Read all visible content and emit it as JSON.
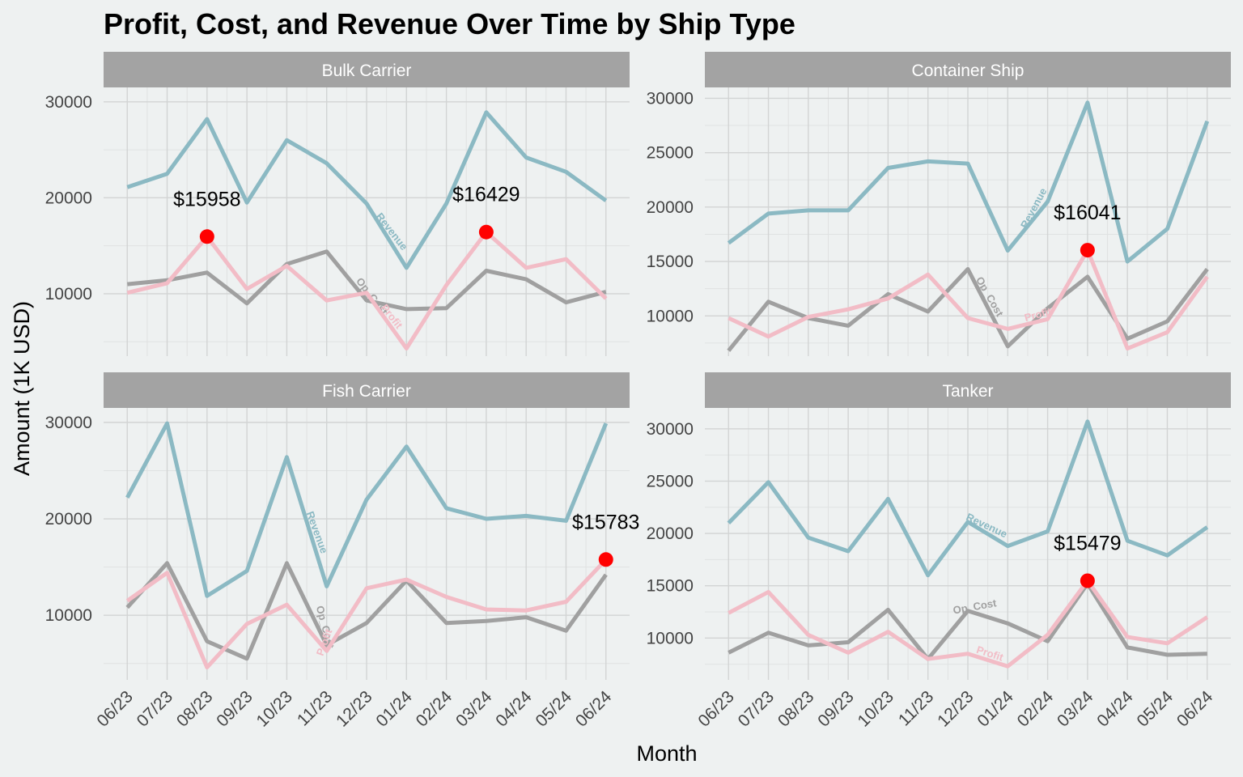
{
  "chart_data": {
    "type": "line",
    "title": "Profit, Cost, and Revenue Over Time by Ship Type",
    "xlabel": "Month",
    "ylabel": "Amount (1K USD)",
    "categories": [
      "06/23",
      "07/23",
      "08/23",
      "09/23",
      "10/23",
      "11/23",
      "12/23",
      "01/24",
      "02/24",
      "03/24",
      "04/24",
      "05/24",
      "06/24"
    ],
    "series_colors": {
      "Revenue": "#8bb9c3",
      "Op_Cost": "#a0a0a0",
      "Profit": "#f2bcc6"
    },
    "highlight_color": "#ff0000",
    "panels": [
      {
        "name": "Bulk Carrier",
        "ylim": [
          3500,
          31500
        ],
        "yticks": [
          10000,
          20000,
          30000
        ],
        "series": [
          {
            "name": "Revenue",
            "values": [
              21100,
              22500,
              28200,
              19500,
              26000,
              23600,
              19400,
              12700,
              19400,
              28900,
              24200,
              22700,
              19700
            ]
          },
          {
            "name": "Op_Cost",
            "values": [
              11000,
              11400,
              12200,
              9000,
              13100,
              14400,
              9300,
              8400,
              8500,
              12400,
              11500,
              9100,
              10200
            ]
          },
          {
            "name": "Profit",
            "values": [
              10100,
              11100,
              15958,
              10500,
              12900,
              9300,
              10100,
              4300,
              10900,
              16429,
              12700,
              13600,
              9500
            ]
          }
        ],
        "highlights": [
          {
            "x": "08/23",
            "y": 15958,
            "label": "$15958"
          },
          {
            "x": "03/24",
            "y": 16429,
            "label": "$16429"
          }
        ]
      },
      {
        "name": "Container Ship",
        "ylim": [
          6300,
          31000
        ],
        "yticks": [
          10000,
          15000,
          20000,
          25000,
          30000
        ],
        "series": [
          {
            "name": "Revenue",
            "values": [
              16700,
              19400,
              19700,
              19700,
              23600,
              24200,
              24000,
              16000,
              20500,
              29600,
              15000,
              18000,
              27900
            ]
          },
          {
            "name": "Op_Cost",
            "values": [
              6800,
              11300,
              9800,
              9100,
              12000,
              10400,
              14300,
              7200,
              10700,
              13600,
              7900,
              9500,
              14300
            ]
          },
          {
            "name": "Profit",
            "values": [
              9800,
              8100,
              9900,
              10600,
              11600,
              13800,
              9800,
              8800,
              9700,
              16041,
              7000,
              8500,
              13600
            ]
          }
        ],
        "highlights": [
          {
            "x": "03/24",
            "y": 16041,
            "label": "$16041"
          }
        ]
      },
      {
        "name": "Fish Carrier",
        "ylim": [
          3300,
          31500
        ],
        "yticks": [
          10000,
          20000,
          30000
        ],
        "series": [
          {
            "name": "Revenue",
            "values": [
              22200,
              29900,
              12000,
              14600,
              26400,
              13000,
              22000,
              27500,
              21100,
              20000,
              20300,
              19800,
              29900
            ]
          },
          {
            "name": "Op_Cost",
            "values": [
              10800,
              15400,
              7300,
              5500,
              15400,
              6900,
              9200,
              13600,
              9200,
              9400,
              9800,
              8400,
              14200
            ]
          },
          {
            "name": "Profit",
            "values": [
              11500,
              14400,
              4600,
              9100,
              11100,
              6300,
              12800,
              13700,
              11900,
              10600,
              10500,
              11400,
              15783
            ]
          }
        ],
        "highlights": [
          {
            "x": "06/24",
            "y": 15783,
            "label": "$15783"
          }
        ]
      },
      {
        "name": "Tanker",
        "ylim": [
          6000,
          32000
        ],
        "yticks": [
          10000,
          15000,
          20000,
          25000,
          30000
        ],
        "series": [
          {
            "name": "Revenue",
            "values": [
              21000,
              24900,
              19600,
              18300,
              23300,
              16000,
              21100,
              18800,
              20200,
              30700,
              19300,
              17900,
              20600
            ]
          },
          {
            "name": "Op_Cost",
            "values": [
              8600,
              10500,
              9300,
              9600,
              12700,
              8000,
              12600,
              11400,
              9700,
              15200,
              9100,
              8400,
              8500
            ]
          },
          {
            "name": "Profit",
            "values": [
              12400,
              14400,
              10300,
              8600,
              10600,
              8000,
              8500,
              7300,
              10300,
              15479,
              10100,
              9500,
              12000
            ]
          }
        ],
        "highlights": [
          {
            "x": "03/24",
            "y": 15479,
            "label": "$15479"
          }
        ]
      }
    ]
  }
}
